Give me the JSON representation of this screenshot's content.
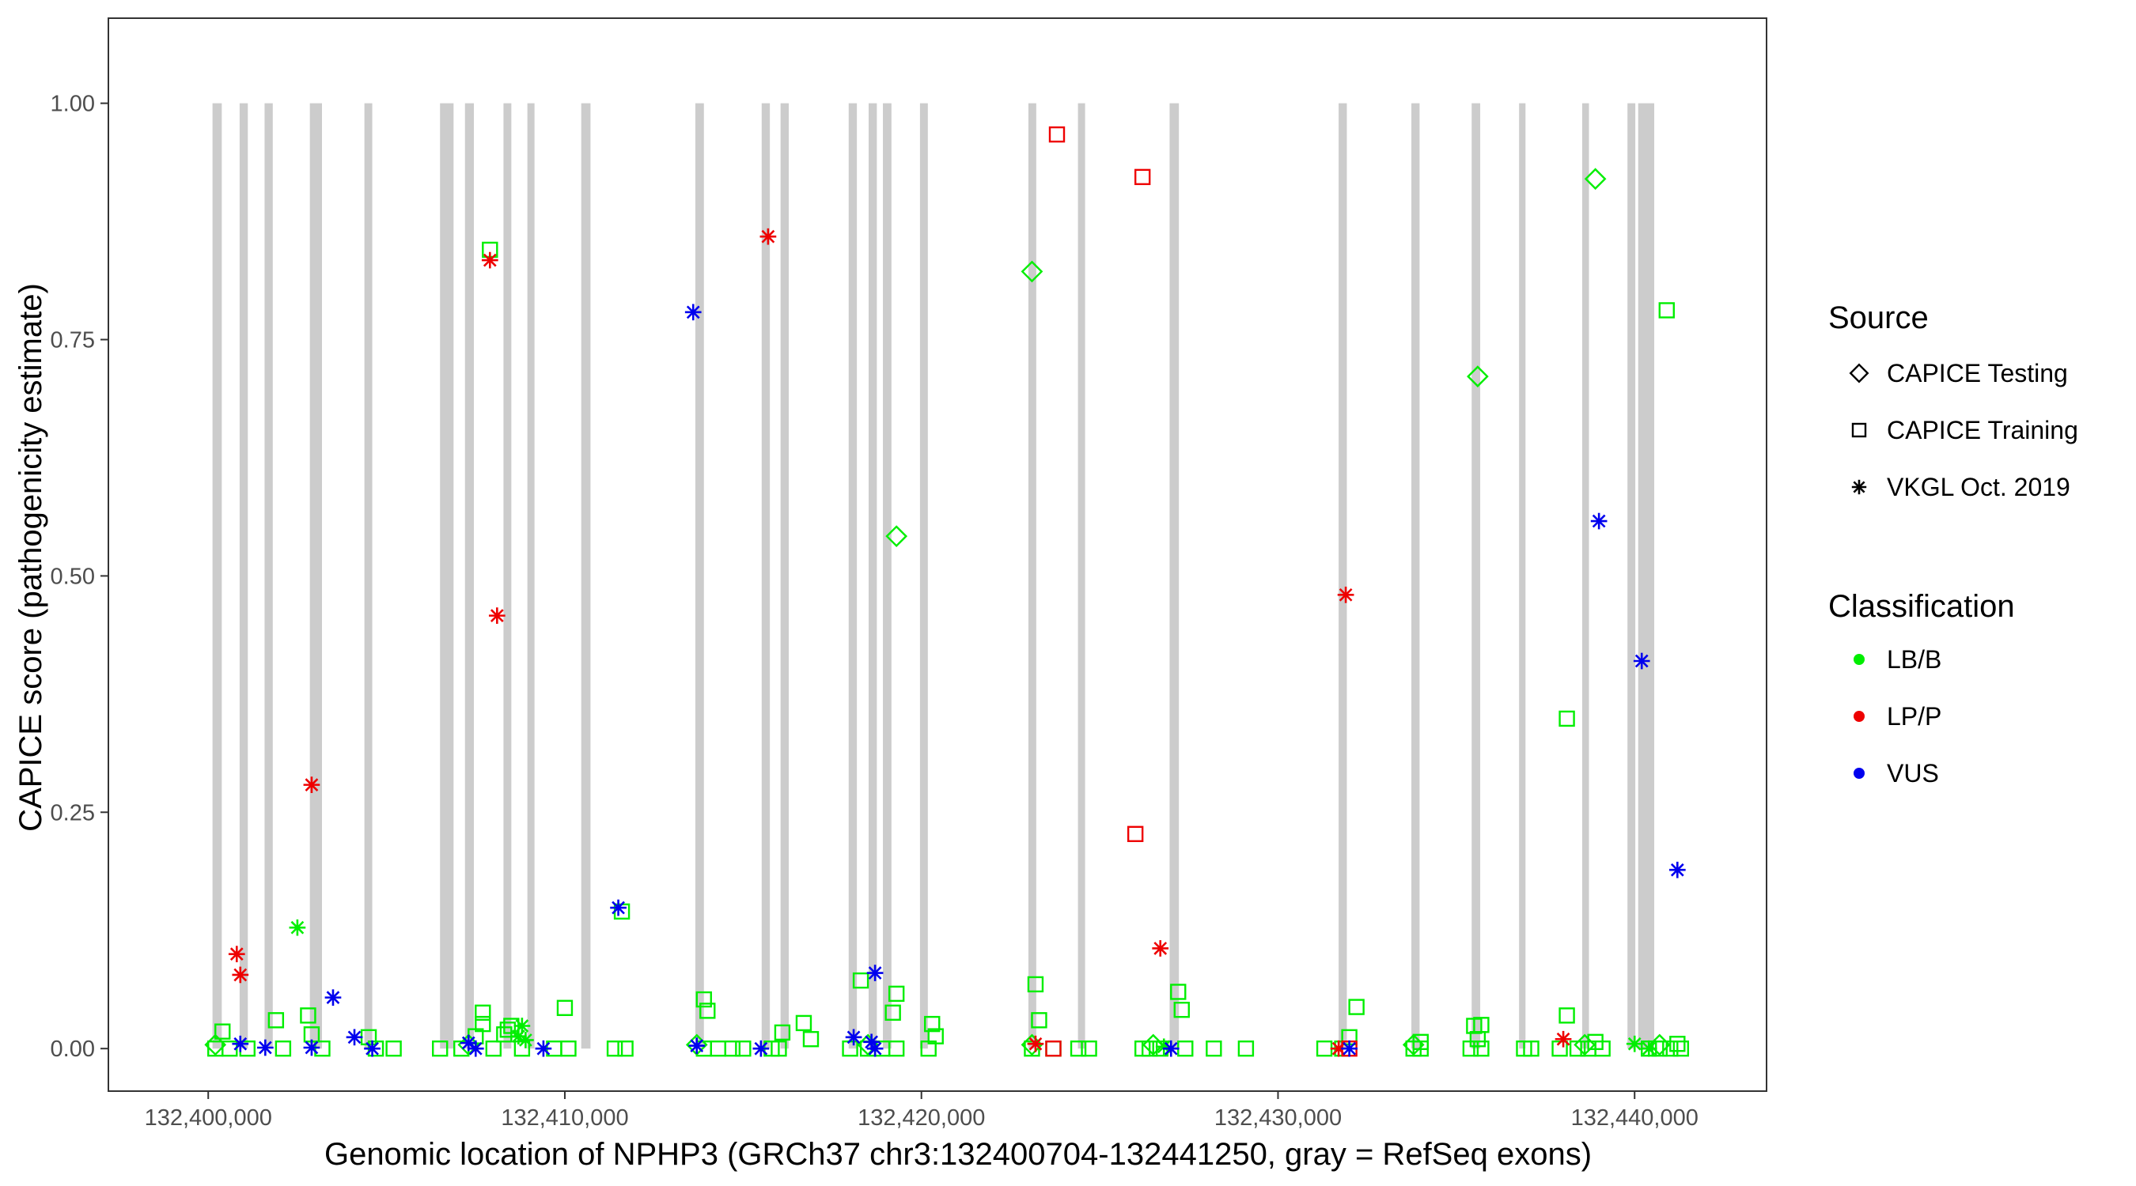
{
  "chart_data": {
    "type": "scatter",
    "title": "",
    "xlabel": "Genomic location of NPHP3 (GRCh37 chr3:132400704-132441250, gray = RefSeq exons)",
    "ylabel": "CAPICE score (pathogenicity estimate)",
    "xlim": [
      132397200,
      132443700
    ],
    "ylim": [
      -0.045,
      1.09
    ],
    "x_ticks": [
      132400000,
      132410000,
      132420000,
      132430000,
      132440000
    ],
    "x_tick_labels": [
      "132,400,000",
      "132,410,000",
      "132,420,000",
      "132,430,000",
      "132,440,000"
    ],
    "y_ticks": [
      0,
      0.25,
      0.5,
      0.75,
      1.0
    ],
    "y_tick_labels": [
      "0.00",
      "0.25",
      "0.50",
      "0.75",
      "1.00"
    ],
    "grid": false,
    "legend_position": "right",
    "exons": [
      {
        "start": 132400120,
        "end": 132400380
      },
      {
        "start": 132400880,
        "end": 132401110
      },
      {
        "start": 132401580,
        "end": 132401810
      },
      {
        "start": 132402850,
        "end": 132403190
      },
      {
        "start": 132404380,
        "end": 132404600
      },
      {
        "start": 132406500,
        "end": 132406880
      },
      {
        "start": 132407200,
        "end": 132407450
      },
      {
        "start": 132408280,
        "end": 132408500
      },
      {
        "start": 132408950,
        "end": 132409150
      },
      {
        "start": 132410460,
        "end": 132410720
      },
      {
        "start": 132413660,
        "end": 132413900
      },
      {
        "start": 132415520,
        "end": 132415750
      },
      {
        "start": 132416050,
        "end": 132416280
      },
      {
        "start": 132417960,
        "end": 132418190
      },
      {
        "start": 132418520,
        "end": 132418750
      },
      {
        "start": 132418920,
        "end": 132419160
      },
      {
        "start": 132419960,
        "end": 132420180
      },
      {
        "start": 132423000,
        "end": 132423220
      },
      {
        "start": 132424390,
        "end": 132424590
      },
      {
        "start": 132426960,
        "end": 132427220
      },
      {
        "start": 132431700,
        "end": 132431930
      },
      {
        "start": 132433740,
        "end": 132433970
      },
      {
        "start": 132435430,
        "end": 132435670
      },
      {
        "start": 132436760,
        "end": 132436940
      },
      {
        "start": 132438530,
        "end": 132438720
      },
      {
        "start": 132439800,
        "end": 132440020
      },
      {
        "start": 132440100,
        "end": 132440550
      }
    ],
    "legend": {
      "source_title": "Source",
      "source_entries": [
        {
          "label": "CAPICE Testing",
          "shape": "diamond"
        },
        {
          "label": "CAPICE Training",
          "shape": "square"
        },
        {
          "label": "VKGL Oct. 2019",
          "shape": "asterisk"
        }
      ],
      "class_title": "Classification",
      "class_entries": [
        {
          "label": "LB/B",
          "color": "#00ee00"
        },
        {
          "label": "LP/P",
          "color": "#ee0000"
        },
        {
          "label": "VUS",
          "color": "#0000ee"
        }
      ]
    },
    "colors": {
      "LB/B": "#00ee00",
      "LP/P": "#ee0000",
      "VUS": "#0000ee",
      "exon": "#cccccc"
    },
    "series": [
      {
        "source": "CAPICE Testing",
        "classification": "LB/B",
        "points": [
          [
            132423100,
            0.822
          ],
          [
            132419300,
            0.542
          ],
          [
            132435600,
            0.711
          ],
          [
            132438900,
            0.92
          ],
          [
            132400200,
            0.004
          ],
          [
            132407300,
            0.004
          ],
          [
            132413700,
            0.004
          ],
          [
            132418500,
            0.004
          ],
          [
            132423100,
            0.004
          ],
          [
            132426500,
            0.004
          ],
          [
            132433800,
            0.004
          ],
          [
            132438600,
            0.004
          ],
          [
            132440700,
            0.004
          ]
        ]
      },
      {
        "source": "CAPICE Training",
        "classification": "LB/B",
        "points": [
          [
            132400400,
            0.018
          ],
          [
            132401900,
            0.03
          ],
          [
            132402800,
            0.035
          ],
          [
            132402900,
            0.015
          ],
          [
            132404500,
            0.012
          ],
          [
            132407500,
            0.013
          ],
          [
            132407700,
            0.038
          ],
          [
            132407700,
            0.026
          ],
          [
            132407900,
            0.845
          ],
          [
            132408300,
            0.015
          ],
          [
            132408400,
            0.02
          ],
          [
            132408500,
            0.024
          ],
          [
            132410000,
            0.043
          ],
          [
            132411600,
            0.145
          ],
          [
            132413900,
            0.052
          ],
          [
            132414000,
            0.04
          ],
          [
            132416100,
            0.017
          ],
          [
            132416700,
            0.027
          ],
          [
            132416900,
            0.01
          ],
          [
            132418300,
            0.072
          ],
          [
            132419300,
            0.058
          ],
          [
            132419200,
            0.038
          ],
          [
            132420300,
            0.026
          ],
          [
            132420400,
            0.013
          ],
          [
            132423200,
            0.068
          ],
          [
            132423300,
            0.03
          ],
          [
            132427200,
            0.06
          ],
          [
            132427300,
            0.041
          ],
          [
            132432200,
            0.044
          ],
          [
            132432000,
            0.012
          ],
          [
            132434000,
            0.007
          ],
          [
            132435500,
            0.024
          ],
          [
            132435700,
            0.025
          ],
          [
            132435600,
            0.01
          ],
          [
            132438100,
            0.349
          ],
          [
            132438100,
            0.035
          ],
          [
            132438900,
            0.007
          ],
          [
            132440900,
            0.781
          ],
          [
            132441200,
            0.005
          ],
          [
            132400200,
            0.0
          ],
          [
            132400600,
            0.0
          ],
          [
            132401100,
            0.0
          ],
          [
            132402100,
            0.0
          ],
          [
            132403200,
            0.0
          ],
          [
            132404700,
            0.0
          ],
          [
            132405200,
            0.0
          ],
          [
            132406500,
            0.0
          ],
          [
            132407100,
            0.0
          ],
          [
            132408000,
            0.0
          ],
          [
            132408800,
            0.0
          ],
          [
            132409700,
            0.0
          ],
          [
            132410100,
            0.0
          ],
          [
            132411400,
            0.0
          ],
          [
            132411700,
            0.0
          ],
          [
            132413900,
            0.0
          ],
          [
            132414300,
            0.0
          ],
          [
            132414700,
            0.0
          ],
          [
            132415000,
            0.0
          ],
          [
            132415800,
            0.0
          ],
          [
            132416000,
            0.0
          ],
          [
            132418000,
            0.0
          ],
          [
            132418500,
            0.0
          ],
          [
            132418900,
            0.0
          ],
          [
            132419300,
            0.0
          ],
          [
            132420200,
            0.0
          ],
          [
            132423100,
            0.0
          ],
          [
            132423700,
            0.0
          ],
          [
            132424400,
            0.0
          ],
          [
            132424700,
            0.0
          ],
          [
            132426200,
            0.0
          ],
          [
            132426400,
            0.0
          ],
          [
            132426700,
            0.0
          ],
          [
            132427400,
            0.0
          ],
          [
            132428200,
            0.0
          ],
          [
            132429100,
            0.0
          ],
          [
            132431300,
            0.0
          ],
          [
            132431800,
            0.0
          ],
          [
            132433800,
            0.0
          ],
          [
            132434000,
            0.0
          ],
          [
            132435400,
            0.0
          ],
          [
            132435700,
            0.0
          ],
          [
            132436900,
            0.0
          ],
          [
            132437100,
            0.0
          ],
          [
            132437900,
            0.0
          ],
          [
            132438400,
            0.0
          ],
          [
            132438700,
            0.0
          ],
          [
            132439100,
            0.0
          ],
          [
            132440400,
            0.0
          ],
          [
            132440700,
            0.0
          ],
          [
            132441000,
            0.0
          ],
          [
            132441300,
            0.0
          ]
        ]
      },
      {
        "source": "CAPICE Training",
        "classification": "LP/P",
        "points": [
          [
            132423800,
            0.967
          ],
          [
            132426200,
            0.922
          ],
          [
            132426000,
            0.227
          ],
          [
            132423700,
            0.0
          ],
          [
            132432000,
            0.0
          ]
        ]
      },
      {
        "source": "VKGL Oct. 2019",
        "classification": "LB/B",
        "points": [
          [
            132402500,
            0.128
          ],
          [
            132408800,
            0.024
          ],
          [
            132408700,
            0.013
          ],
          [
            132408900,
            0.009
          ],
          [
            132440000,
            0.005
          ],
          [
            132440400,
            0.0
          ],
          [
            132426800,
            0.002
          ]
        ]
      },
      {
        "source": "VKGL Oct. 2019",
        "classification": "LP/P",
        "points": [
          [
            132400800,
            0.1
          ],
          [
            132400900,
            0.078
          ],
          [
            132402900,
            0.279
          ],
          [
            132407900,
            0.834
          ],
          [
            132408100,
            0.458
          ],
          [
            132415700,
            0.859
          ],
          [
            132426700,
            0.106
          ],
          [
            132431900,
            0.48
          ],
          [
            132423200,
            0.005
          ],
          [
            132438000,
            0.01
          ],
          [
            132431700,
            0.0
          ]
        ]
      },
      {
        "source": "VKGL Oct. 2019",
        "classification": "VUS",
        "points": [
          [
            132403500,
            0.054
          ],
          [
            132404100,
            0.012
          ],
          [
            132411500,
            0.149
          ],
          [
            132413600,
            0.779
          ],
          [
            132418100,
            0.012
          ],
          [
            132418700,
            0.08
          ],
          [
            132418600,
            0.007
          ],
          [
            132439000,
            0.558
          ],
          [
            132440200,
            0.41
          ],
          [
            132441200,
            0.189
          ],
          [
            132400900,
            0.005
          ],
          [
            132401600,
            0.001
          ],
          [
            132402900,
            0.001
          ],
          [
            132404600,
            0.0
          ],
          [
            132407300,
            0.006
          ],
          [
            132407500,
            0.0
          ],
          [
            132409400,
            0.0
          ],
          [
            132413700,
            0.003
          ],
          [
            132415500,
            0.0
          ],
          [
            132418700,
            0.0
          ],
          [
            132427000,
            0.0
          ],
          [
            132432000,
            0.0
          ]
        ]
      }
    ]
  }
}
